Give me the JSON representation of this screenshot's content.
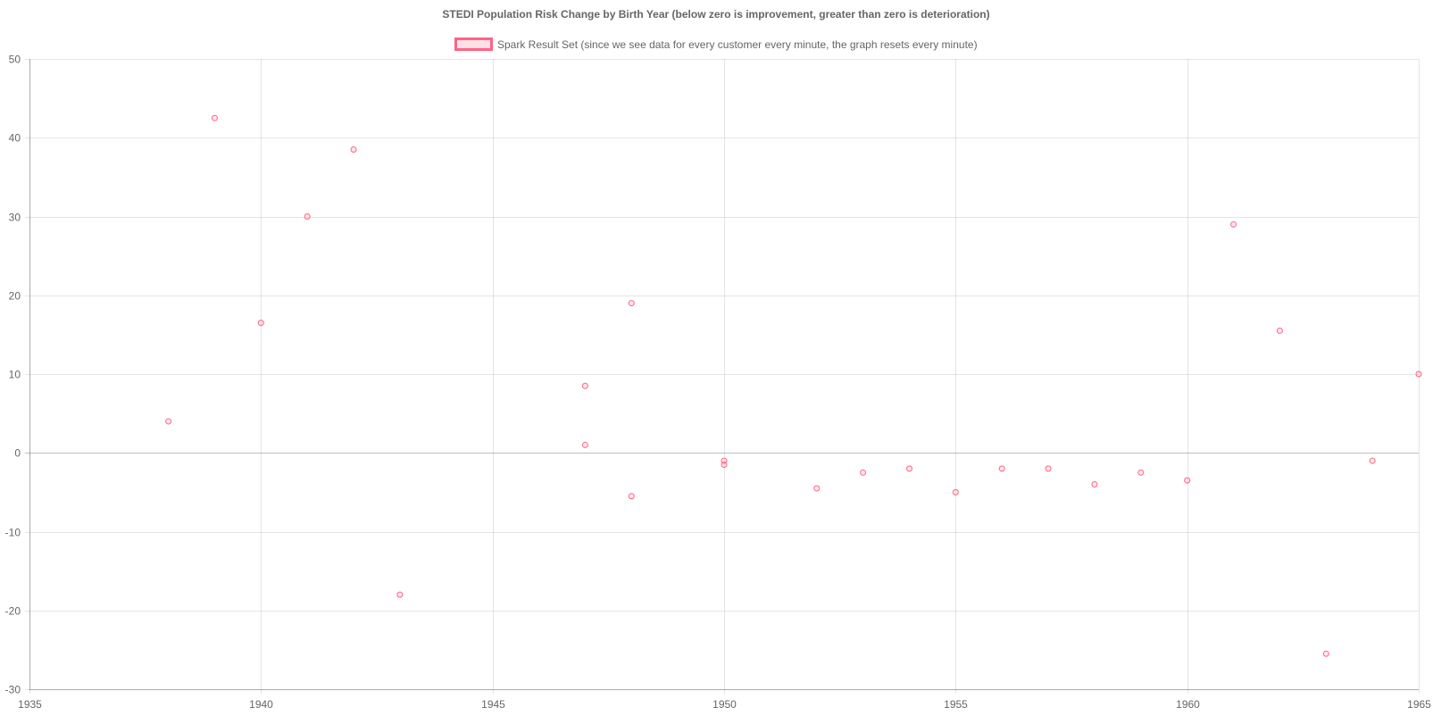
{
  "chart_data": {
    "type": "scatter",
    "title": "STEDI Population Risk Change by Birth Year (below zero is improvement, greater than zero is deterioration)",
    "xlabel": "",
    "ylabel": "",
    "xlim": [
      1935,
      1965
    ],
    "ylim": [
      -30,
      50
    ],
    "x_ticks": [
      1935,
      1940,
      1945,
      1950,
      1955,
      1960,
      1965
    ],
    "y_ticks": [
      -30,
      -20,
      -10,
      0,
      10,
      20,
      30,
      40,
      50
    ],
    "grid": true,
    "legend": {
      "position": "top-center"
    },
    "series": [
      {
        "name": "Spark Result Set (since we see data for every customer every minute, the graph resets every minute)",
        "color": "#ff6384",
        "points": [
          {
            "x": 1938,
            "y": 4
          },
          {
            "x": 1939,
            "y": 42.5
          },
          {
            "x": 1940,
            "y": 16.5
          },
          {
            "x": 1941,
            "y": 30
          },
          {
            "x": 1942,
            "y": 38.5
          },
          {
            "x": 1943,
            "y": -18
          },
          {
            "x": 1947,
            "y": 8.5
          },
          {
            "x": 1947,
            "y": 1
          },
          {
            "x": 1948,
            "y": 19
          },
          {
            "x": 1948,
            "y": -5.5
          },
          {
            "x": 1950,
            "y": -1
          },
          {
            "x": 1950,
            "y": -1.5
          },
          {
            "x": 1952,
            "y": -4.5
          },
          {
            "x": 1953,
            "y": -2.5
          },
          {
            "x": 1954,
            "y": -2
          },
          {
            "x": 1955,
            "y": -5
          },
          {
            "x": 1956,
            "y": -2
          },
          {
            "x": 1957,
            "y": -2
          },
          {
            "x": 1958,
            "y": -4
          },
          {
            "x": 1959,
            "y": -2.5
          },
          {
            "x": 1960,
            "y": -3.5
          },
          {
            "x": 1961,
            "y": 29
          },
          {
            "x": 1962,
            "y": 15.5
          },
          {
            "x": 1963,
            "y": -25.5
          },
          {
            "x": 1964,
            "y": -1
          },
          {
            "x": 1965,
            "y": 10
          }
        ]
      }
    ]
  }
}
